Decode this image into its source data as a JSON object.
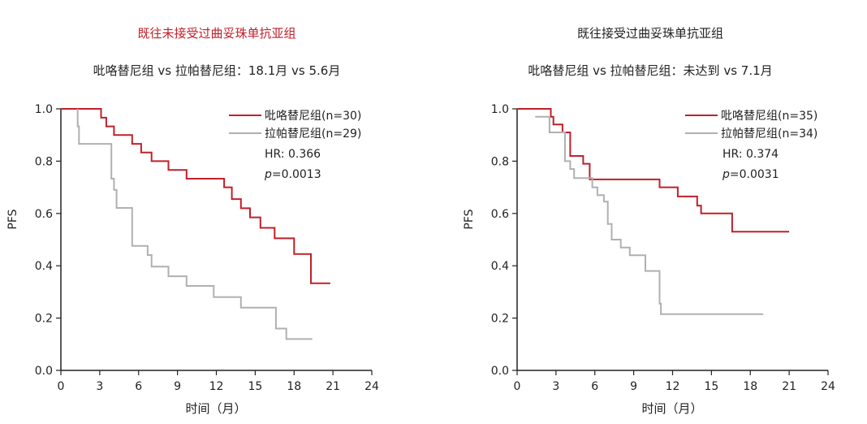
{
  "chart_data": [
    {
      "type": "line",
      "title": "既往未接受过曲妥珠单抗亚组",
      "title_color": "#c0202a",
      "subtitle": "吡咯替尼组 vs 拉帕替尼组：18.1月 vs 5.6月",
      "xlabel": "时间（月）",
      "ylabel": "PFS",
      "xlim": [
        0,
        24
      ],
      "ylim": [
        0.0,
        1.0
      ],
      "xticks": [
        0,
        3,
        6,
        9,
        12,
        15,
        18,
        21,
        24
      ],
      "yticks": [
        "0.0",
        "0.2",
        "0.4",
        "0.6",
        "0.8",
        "1.0"
      ],
      "series": [
        {
          "name": "吡咯替尼组(n=30)",
          "color": "#c0202a",
          "x": [
            0,
            3.1,
            3.1,
            3.5,
            3.5,
            4.1,
            4.1,
            5.5,
            5.5,
            6.2,
            6.2,
            7.0,
            7.0,
            8.3,
            8.3,
            9.7,
            9.7,
            12.6,
            12.6,
            13.2,
            13.2,
            13.9,
            13.9,
            14.6,
            14.6,
            15.4,
            15.4,
            16.5,
            16.5,
            18.0,
            18.0,
            19.3,
            19.3,
            20.8
          ],
          "y": [
            1.0,
            1.0,
            0.966,
            0.966,
            0.933,
            0.933,
            0.9,
            0.9,
            0.866,
            0.866,
            0.833,
            0.833,
            0.8,
            0.8,
            0.766,
            0.766,
            0.733,
            0.733,
            0.7,
            0.7,
            0.655,
            0.655,
            0.62,
            0.62,
            0.585,
            0.585,
            0.545,
            0.545,
            0.505,
            0.505,
            0.445,
            0.445,
            0.333,
            0.333
          ]
        },
        {
          "name": "拉帕替尼组(n=29)",
          "color": "#b0b0b0",
          "x": [
            1.3,
            1.3,
            1.4,
            1.4,
            3.9,
            3.9,
            4.1,
            4.1,
            4.3,
            4.3,
            5.5,
            5.5,
            6.7,
            6.7,
            7.0,
            7.0,
            8.3,
            8.3,
            9.7,
            9.7,
            11.8,
            11.8,
            13.9,
            13.9,
            16.6,
            16.6,
            17.4,
            17.4,
            19.4
          ],
          "y": [
            1.0,
            0.933,
            0.933,
            0.866,
            0.866,
            0.733,
            0.733,
            0.69,
            0.69,
            0.621,
            0.621,
            0.476,
            0.476,
            0.441,
            0.441,
            0.397,
            0.397,
            0.36,
            0.36,
            0.323,
            0.323,
            0.28,
            0.28,
            0.24,
            0.24,
            0.16,
            0.16,
            0.12,
            0.12
          ]
        }
      ],
      "annotations": {
        "hr": "HR: 0.366",
        "p_label": "p",
        "p_value": "=0.0013"
      },
      "legend_position": "top-right"
    },
    {
      "type": "line",
      "title": "既往接受过曲妥珠单抗亚组",
      "title_color": "#222222",
      "subtitle": "吡咯替尼组 vs 拉帕替尼组：未达到 vs 7.1月",
      "xlabel": "时间（月）",
      "ylabel": "PFS",
      "xlim": [
        0,
        24
      ],
      "ylim": [
        0.0,
        1.0
      ],
      "xticks": [
        0,
        3,
        6,
        9,
        12,
        15,
        18,
        21,
        24
      ],
      "yticks": [
        "0.0",
        "0.2",
        "0.4",
        "0.6",
        "0.8",
        "1.0"
      ],
      "series": [
        {
          "name": "吡咯替尼组(n=35)",
          "color": "#c0202a",
          "x": [
            0,
            2.6,
            2.6,
            2.8,
            2.8,
            3.5,
            3.5,
            4.1,
            4.1,
            4.3,
            4.3,
            5.1,
            5.1,
            5.6,
            5.6,
            11.0,
            11.0,
            12.4,
            12.4,
            13.9,
            13.9,
            14.2,
            14.2,
            16.6,
            16.6,
            21.0
          ],
          "y": [
            1.0,
            1.0,
            0.97,
            0.97,
            0.94,
            0.94,
            0.91,
            0.91,
            0.82,
            0.82,
            0.82,
            0.82,
            0.79,
            0.79,
            0.73,
            0.73,
            0.7,
            0.7,
            0.665,
            0.665,
            0.63,
            0.63,
            0.6,
            0.6,
            0.53,
            0.53
          ]
        },
        {
          "name": "拉帕替尼组(n=34)",
          "color": "#b0b0b0",
          "x": [
            1.4,
            2.5,
            2.5,
            3.7,
            3.7,
            4.1,
            4.1,
            4.4,
            4.4,
            5.5,
            5.5,
            5.8,
            5.8,
            6.2,
            6.2,
            6.7,
            6.7,
            7.0,
            7.0,
            7.3,
            7.3,
            8.0,
            8.0,
            8.7,
            8.7,
            9.9,
            9.9,
            11.0,
            11.0,
            11.1,
            11.1,
            19.0
          ],
          "y": [
            0.97,
            0.97,
            0.91,
            0.91,
            0.8,
            0.8,
            0.77,
            0.77,
            0.735,
            0.735,
            0.735,
            0.735,
            0.7,
            0.7,
            0.67,
            0.67,
            0.645,
            0.645,
            0.56,
            0.56,
            0.5,
            0.5,
            0.47,
            0.47,
            0.44,
            0.44,
            0.38,
            0.38,
            0.255,
            0.255,
            0.215,
            0.215
          ]
        }
      ],
      "annotations": {
        "hr": "HR: 0.374",
        "p_label": "p",
        "p_value": "=0.0031"
      },
      "legend_position": "top-right"
    }
  ]
}
